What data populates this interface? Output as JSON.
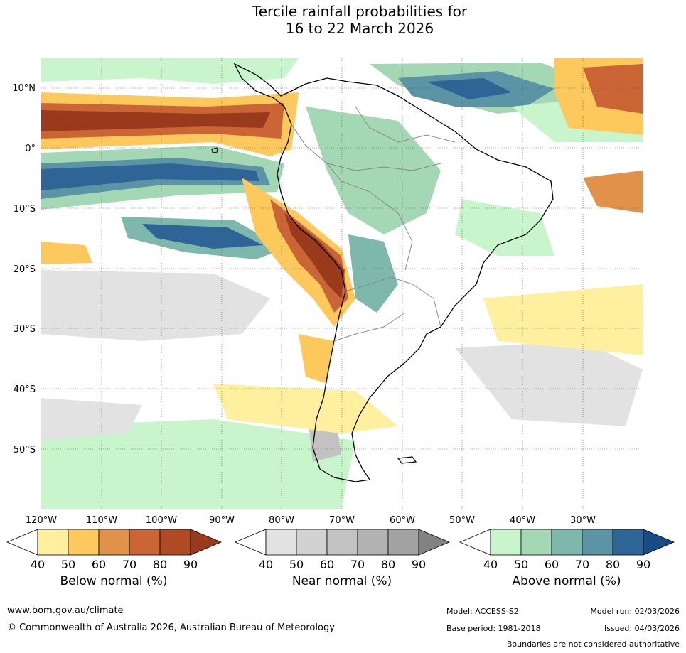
{
  "title": {
    "line1": "Tercile rainfall probabilities for",
    "line2": "16 to 22 March 2026"
  },
  "lat_labels": [
    "10°N",
    "0°",
    "10°S",
    "20°S",
    "30°S",
    "40°S",
    "50°S"
  ],
  "lon_labels": [
    "120°W",
    "110°W",
    "100°W",
    "90°W",
    "80°W",
    "70°W",
    "60°W",
    "50°W",
    "40°W",
    "30°W"
  ],
  "legends": [
    {
      "title": "Below normal (%)",
      "ticks": [
        "40",
        "50",
        "60",
        "70",
        "80",
        "90"
      ],
      "colors": [
        "#fff0a0",
        "#fdc95c",
        "#e0914a",
        "#cc6535",
        "#b04a25",
        "#9a3a1c"
      ]
    },
    {
      "title": "Near normal (%)",
      "ticks": [
        "40",
        "50",
        "60",
        "70",
        "80",
        "90"
      ],
      "colors": [
        "#e2e2e2",
        "#d2d2d2",
        "#c2c2c2",
        "#b2b2b2",
        "#a2a2a2",
        "#828282"
      ]
    },
    {
      "title": "Above normal (%)",
      "ticks": [
        "40",
        "50",
        "60",
        "70",
        "80",
        "90"
      ],
      "colors": [
        "#c8f5cc",
        "#a4d8b4",
        "#7eb8ac",
        "#5b94a4",
        "#2f6496",
        "#184c88"
      ]
    }
  ],
  "footer": {
    "url": "www.bom.gov.au/climate",
    "copyright": "© Commonwealth of Australia 2026, Australian Bureau of Meteorology",
    "model": "Model: ACCESS-S2",
    "base_period": "Base period: 1981-2018",
    "model_run": "Model run: 02/03/2026",
    "issued": "Issued: 04/03/2026",
    "disclaimer": "Boundaries are not considered authoritative"
  }
}
